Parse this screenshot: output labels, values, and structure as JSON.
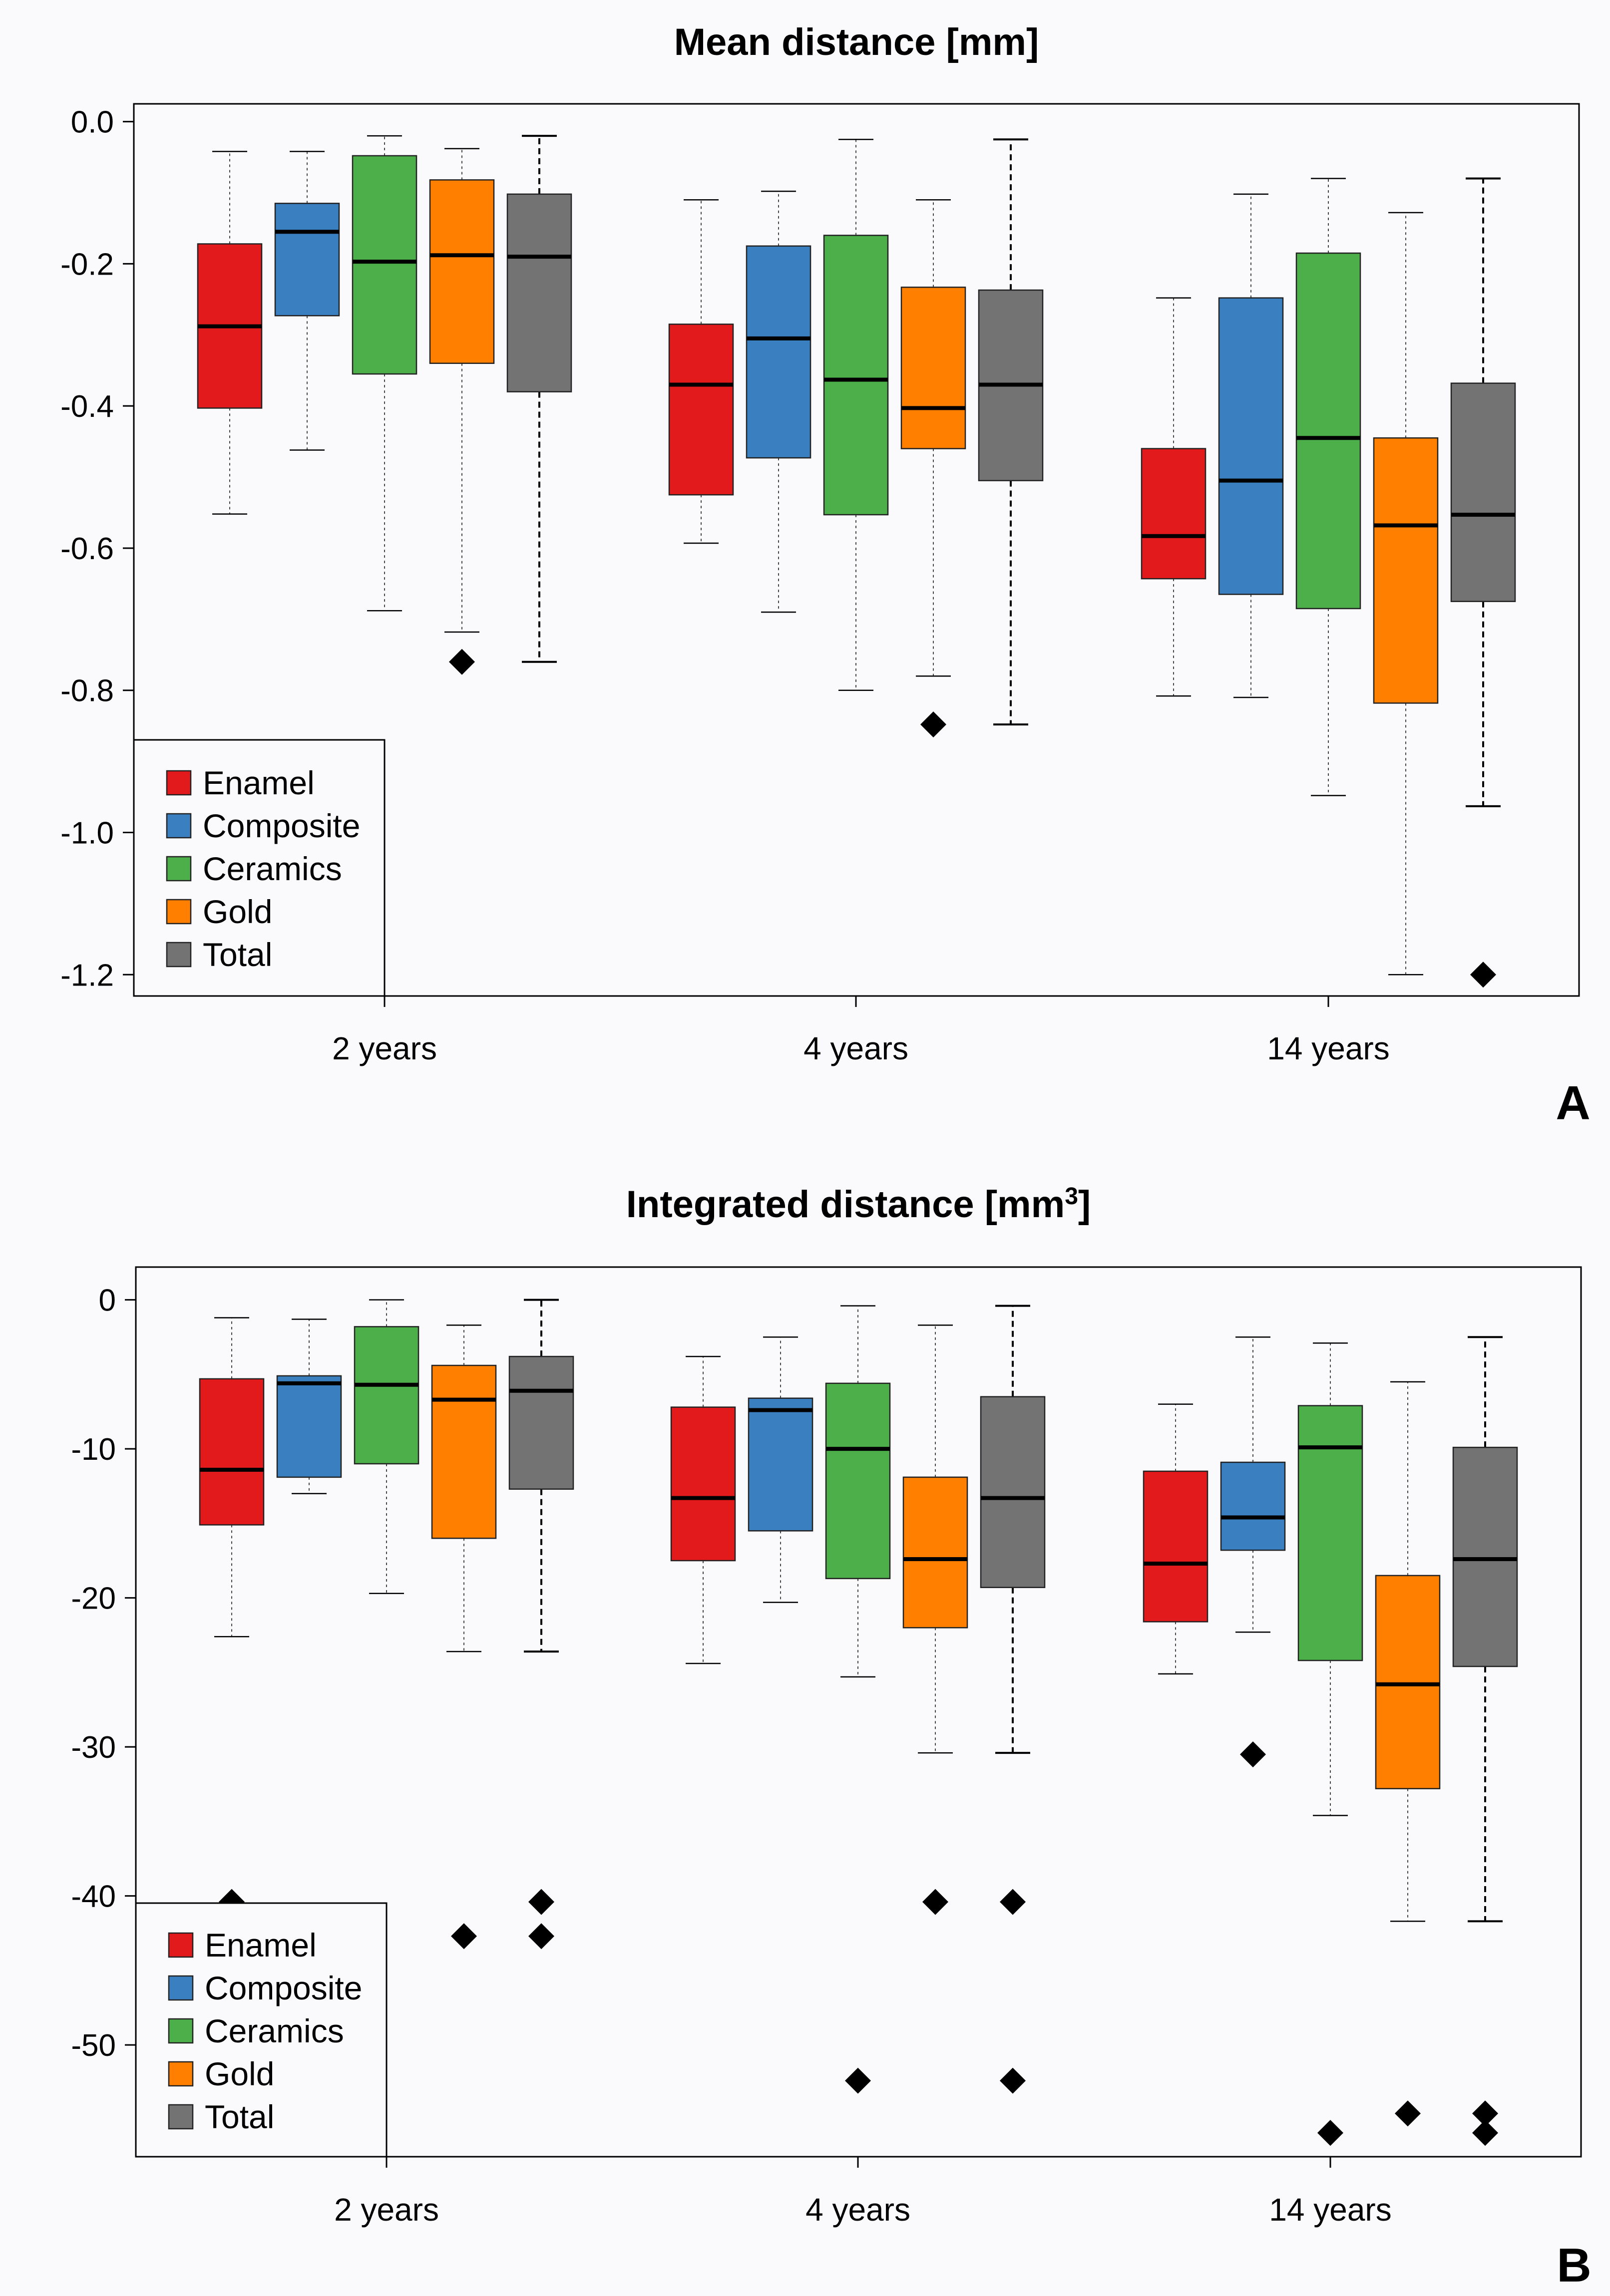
{
  "chart_data": [
    {
      "type": "box",
      "panel_label": "A",
      "title_parts": [
        "Mean distance [mm]"
      ],
      "groups": [
        "2 years",
        "4 years",
        "14 years"
      ],
      "series_names": [
        "Enamel",
        "Composite",
        "Ceramics",
        "Gold",
        "Total"
      ],
      "colors": [
        "#e31a1c",
        "#3a7fbf",
        "#4daf4a",
        "#ff7f00",
        "#737373"
      ],
      "ylim": [
        -1.23,
        0.025
      ],
      "yticks": [
        0.0,
        -0.2,
        -0.4,
        -0.6,
        -0.8,
        -1.0,
        -1.2
      ],
      "ytick_labels": [
        "0.0",
        "-0.2",
        "-0.4",
        "-0.6",
        "-0.8",
        "-1.0",
        "-1.2"
      ],
      "legend_position": "bottom-left",
      "boxes": [
        [
          {
            "series": "Enamel",
            "q1": -0.403,
            "median": -0.288,
            "q3": -0.172,
            "whisker_low": -0.552,
            "whisker_high": -0.042,
            "outliers": []
          },
          {
            "series": "Composite",
            "q1": -0.273,
            "median": -0.155,
            "q3": -0.115,
            "whisker_low": -0.462,
            "whisker_high": -0.042,
            "outliers": []
          },
          {
            "series": "Ceramics",
            "q1": -0.355,
            "median": -0.197,
            "q3": -0.048,
            "whisker_low": -0.688,
            "whisker_high": -0.02,
            "outliers": []
          },
          {
            "series": "Gold",
            "q1": -0.34,
            "median": -0.188,
            "q3": -0.082,
            "whisker_low": -0.718,
            "whisker_high": -0.038,
            "outliers": [
              -0.76
            ]
          },
          {
            "series": "Total",
            "q1": -0.38,
            "median": -0.19,
            "q3": -0.102,
            "whisker_low": -0.76,
            "whisker_high": -0.02,
            "outliers": []
          }
        ],
        [
          {
            "series": "Enamel",
            "q1": -0.525,
            "median": -0.37,
            "q3": -0.285,
            "whisker_low": -0.593,
            "whisker_high": -0.11,
            "outliers": []
          },
          {
            "series": "Composite",
            "q1": -0.473,
            "median": -0.305,
            "q3": -0.175,
            "whisker_low": -0.69,
            "whisker_high": -0.098,
            "outliers": []
          },
          {
            "series": "Ceramics",
            "q1": -0.553,
            "median": -0.363,
            "q3": -0.16,
            "whisker_low": -0.8,
            "whisker_high": -0.025,
            "outliers": []
          },
          {
            "series": "Gold",
            "q1": -0.46,
            "median": -0.403,
            "q3": -0.233,
            "whisker_low": -0.78,
            "whisker_high": -0.11,
            "outliers": [
              -0.848
            ]
          },
          {
            "series": "Total",
            "q1": -0.505,
            "median": -0.37,
            "q3": -0.237,
            "whisker_low": -0.848,
            "whisker_high": -0.025,
            "outliers": []
          }
        ],
        [
          {
            "series": "Enamel",
            "q1": -0.643,
            "median": -0.583,
            "q3": -0.46,
            "whisker_low": -0.808,
            "whisker_high": -0.248,
            "outliers": []
          },
          {
            "series": "Composite",
            "q1": -0.665,
            "median": -0.505,
            "q3": -0.248,
            "whisker_low": -0.81,
            "whisker_high": -0.102,
            "outliers": []
          },
          {
            "series": "Ceramics",
            "q1": -0.685,
            "median": -0.445,
            "q3": -0.185,
            "whisker_low": -0.948,
            "whisker_high": -0.08,
            "outliers": []
          },
          {
            "series": "Gold",
            "q1": -0.818,
            "median": -0.568,
            "q3": -0.445,
            "whisker_low": -1.2,
            "whisker_high": -0.128,
            "outliers": []
          },
          {
            "series": "Total",
            "q1": -0.675,
            "median": -0.553,
            "q3": -0.368,
            "whisker_low": -0.963,
            "whisker_high": -0.08,
            "outliers": [
              -1.2
            ]
          }
        ]
      ]
    },
    {
      "type": "box",
      "panel_label": "B",
      "title_parts": [
        "Integrated distance [mm",
        "3",
        "]"
      ],
      "groups": [
        "2 years",
        "4 years",
        "14 years"
      ],
      "series_names": [
        "Enamel",
        "Composite",
        "Ceramics",
        "Gold",
        "Total"
      ],
      "colors": [
        "#e31a1c",
        "#3a7fbf",
        "#4daf4a",
        "#ff7f00",
        "#737373"
      ],
      "ylim": [
        -57.5,
        2.2
      ],
      "yticks": [
        0,
        -10,
        -20,
        -30,
        -40,
        -50
      ],
      "ytick_labels": [
        "0",
        "-10",
        "-20",
        "-30",
        "-40",
        "-50"
      ],
      "legend_position": "bottom-left",
      "boxes": [
        [
          {
            "series": "Enamel",
            "q1": -15.1,
            "median": -11.4,
            "q3": -5.3,
            "whisker_low": -22.6,
            "whisker_high": -1.2,
            "outliers": [
              -40.4
            ]
          },
          {
            "series": "Composite",
            "q1": -11.9,
            "median": -5.6,
            "q3": -5.1,
            "whisker_low": -13.0,
            "whisker_high": -1.3,
            "outliers": []
          },
          {
            "series": "Ceramics",
            "q1": -11.0,
            "median": -5.7,
            "q3": -1.8,
            "whisker_low": -19.7,
            "whisker_high": 0.0,
            "outliers": []
          },
          {
            "series": "Gold",
            "q1": -16.0,
            "median": -6.7,
            "q3": -4.4,
            "whisker_low": -23.6,
            "whisker_high": -1.7,
            "outliers": [
              -42.7
            ]
          },
          {
            "series": "Total",
            "q1": -12.7,
            "median": -6.1,
            "q3": -3.8,
            "whisker_low": -23.6,
            "whisker_high": 0.0,
            "outliers": [
              -40.4,
              -42.7
            ]
          }
        ],
        [
          {
            "series": "Enamel",
            "q1": -17.5,
            "median": -13.3,
            "q3": -7.2,
            "whisker_low": -24.4,
            "whisker_high": -3.8,
            "outliers": []
          },
          {
            "series": "Composite",
            "q1": -15.5,
            "median": -7.4,
            "q3": -6.6,
            "whisker_low": -20.3,
            "whisker_high": -2.5,
            "outliers": []
          },
          {
            "series": "Ceramics",
            "q1": -18.7,
            "median": -10.0,
            "q3": -5.6,
            "whisker_low": -25.3,
            "whisker_high": -0.4,
            "outliers": [
              -52.4
            ]
          },
          {
            "series": "Gold",
            "q1": -22.0,
            "median": -17.4,
            "q3": -11.9,
            "whisker_low": -30.4,
            "whisker_high": -1.7,
            "outliers": [
              -40.4
            ]
          },
          {
            "series": "Total",
            "q1": -19.3,
            "median": -13.3,
            "q3": -6.5,
            "whisker_low": -30.4,
            "whisker_high": -0.4,
            "outliers": [
              -40.4,
              -52.4
            ]
          }
        ],
        [
          {
            "series": "Enamel",
            "q1": -21.6,
            "median": -17.7,
            "q3": -11.5,
            "whisker_low": -25.1,
            "whisker_high": -7.0,
            "outliers": []
          },
          {
            "series": "Composite",
            "q1": -16.8,
            "median": -14.6,
            "q3": -10.9,
            "whisker_low": -22.3,
            "whisker_high": -2.5,
            "outliers": [
              -30.5
            ]
          },
          {
            "series": "Ceramics",
            "q1": -24.2,
            "median": -9.9,
            "q3": -7.1,
            "whisker_low": -34.6,
            "whisker_high": -2.9,
            "outliers": [
              -55.9
            ]
          },
          {
            "series": "Gold",
            "q1": -32.8,
            "median": -25.8,
            "q3": -18.5,
            "whisker_low": -41.7,
            "whisker_high": -5.5,
            "outliers": [
              -54.6
            ]
          },
          {
            "series": "Total",
            "q1": -24.6,
            "median": -17.4,
            "q3": -9.9,
            "whisker_low": -41.7,
            "whisker_high": -2.5,
            "outliers": [
              -54.6,
              -55.9
            ]
          }
        ]
      ]
    }
  ]
}
